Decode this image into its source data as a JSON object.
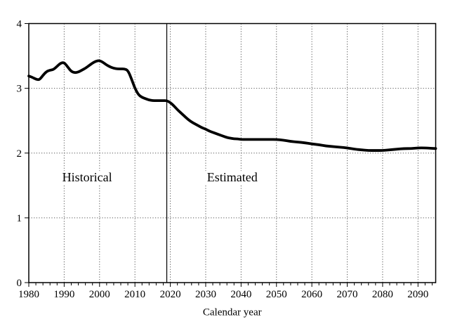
{
  "chart_data": {
    "type": "line",
    "title": "",
    "xlabel": "Calendar year",
    "ylabel": "",
    "xlim": [
      1980,
      2095
    ],
    "ylim": [
      0,
      4
    ],
    "x_ticks": [
      1980,
      1990,
      2000,
      2010,
      2020,
      2030,
      2040,
      2050,
      2060,
      2070,
      2080,
      2090
    ],
    "x_minor_tick_step": 2,
    "y_ticks": [
      0,
      1,
      2,
      3,
      4
    ],
    "grid": "dotted vertical gridlines at decade years, dotted horizontal gridlines at 1, 2, 3; solid box border",
    "divider_year": 2019,
    "line_color": "#000000",
    "grid_color": "#555555",
    "annotations": [
      {
        "text": "Historical",
        "year": 1996.5,
        "value": 1.62
      },
      {
        "text": "Estimated",
        "year": 2037.5,
        "value": 1.62
      }
    ],
    "series": [
      {
        "name": "line",
        "points": [
          [
            1980,
            3.19
          ],
          [
            1981,
            3.17
          ],
          [
            1982,
            3.14
          ],
          [
            1983,
            3.13
          ],
          [
            1984,
            3.2
          ],
          [
            1985,
            3.26
          ],
          [
            1986,
            3.28
          ],
          [
            1987,
            3.29
          ],
          [
            1988,
            3.34
          ],
          [
            1989,
            3.39
          ],
          [
            1990,
            3.4
          ],
          [
            1991,
            3.33
          ],
          [
            1992,
            3.26
          ],
          [
            1993,
            3.24
          ],
          [
            1994,
            3.25
          ],
          [
            1995,
            3.28
          ],
          [
            1996,
            3.31
          ],
          [
            1997,
            3.35
          ],
          [
            1998,
            3.39
          ],
          [
            1999,
            3.42
          ],
          [
            2000,
            3.43
          ],
          [
            2001,
            3.4
          ],
          [
            2002,
            3.36
          ],
          [
            2003,
            3.33
          ],
          [
            2004,
            3.31
          ],
          [
            2005,
            3.3
          ],
          [
            2006,
            3.3
          ],
          [
            2007,
            3.3
          ],
          [
            2008,
            3.28
          ],
          [
            2009,
            3.15
          ],
          [
            2010,
            3.0
          ],
          [
            2011,
            2.9
          ],
          [
            2012,
            2.86
          ],
          [
            2013,
            2.84
          ],
          [
            2014,
            2.82
          ],
          [
            2015,
            2.81
          ],
          [
            2016,
            2.81
          ],
          [
            2017,
            2.81
          ],
          [
            2018,
            2.81
          ],
          [
            2019,
            2.81
          ],
          [
            2020,
            2.78
          ],
          [
            2021,
            2.73
          ],
          [
            2022,
            2.67
          ],
          [
            2023,
            2.62
          ],
          [
            2024,
            2.57
          ],
          [
            2025,
            2.52
          ],
          [
            2026,
            2.48
          ],
          [
            2027,
            2.45
          ],
          [
            2028,
            2.42
          ],
          [
            2029,
            2.39
          ],
          [
            2030,
            2.37
          ],
          [
            2031,
            2.34
          ],
          [
            2032,
            2.32
          ],
          [
            2033,
            2.3
          ],
          [
            2034,
            2.28
          ],
          [
            2035,
            2.26
          ],
          [
            2036,
            2.24
          ],
          [
            2037,
            2.23
          ],
          [
            2038,
            2.22
          ],
          [
            2039,
            2.22
          ],
          [
            2040,
            2.21
          ],
          [
            2042,
            2.21
          ],
          [
            2044,
            2.21
          ],
          [
            2046,
            2.21
          ],
          [
            2048,
            2.21
          ],
          [
            2050,
            2.21
          ],
          [
            2052,
            2.2
          ],
          [
            2054,
            2.18
          ],
          [
            2056,
            2.17
          ],
          [
            2058,
            2.16
          ],
          [
            2060,
            2.14
          ],
          [
            2062,
            2.13
          ],
          [
            2064,
            2.11
          ],
          [
            2066,
            2.1
          ],
          [
            2068,
            2.09
          ],
          [
            2070,
            2.08
          ],
          [
            2072,
            2.06
          ],
          [
            2074,
            2.05
          ],
          [
            2076,
            2.04
          ],
          [
            2078,
            2.04
          ],
          [
            2080,
            2.04
          ],
          [
            2082,
            2.05
          ],
          [
            2084,
            2.06
          ],
          [
            2086,
            2.07
          ],
          [
            2088,
            2.07
          ],
          [
            2090,
            2.08
          ],
          [
            2092,
            2.08
          ],
          [
            2095,
            2.07
          ]
        ]
      }
    ]
  }
}
